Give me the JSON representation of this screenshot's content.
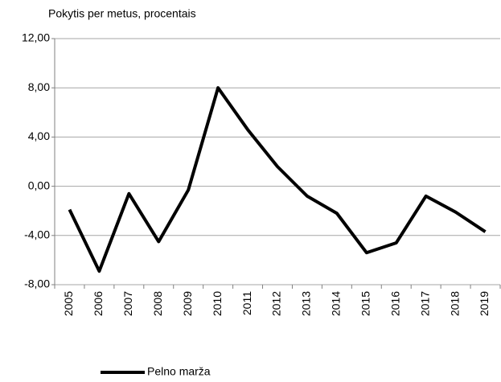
{
  "chart_data": {
    "type": "line",
    "y_axis_label": "Pokytis per metus, procentais",
    "categories": [
      "2005",
      "2006",
      "2007",
      "2008",
      "2009",
      "2010",
      "2011",
      "2012",
      "2013",
      "2014",
      "2015",
      "2016",
      "2017",
      "2018",
      "2019"
    ],
    "series": [
      {
        "name": "Pelno marža",
        "color": "#000000",
        "values": [
          -1.9,
          -6.9,
          -0.6,
          -4.5,
          -0.3,
          8.0,
          4.6,
          1.6,
          -0.8,
          -2.2,
          -5.4,
          -4.6,
          -0.8,
          -2.1,
          -3.7
        ]
      }
    ],
    "ylim": [
      -8,
      12
    ],
    "yticks": [
      {
        "value": -8,
        "label": "-8,00"
      },
      {
        "value": -4,
        "label": "-4,00"
      },
      {
        "value": 0,
        "label": "0,00"
      },
      {
        "value": 4,
        "label": "4,00"
      },
      {
        "value": 8,
        "label": "8,00"
      },
      {
        "value": 12,
        "label": "12,00"
      }
    ],
    "grid": true,
    "legend": "bottom"
  }
}
